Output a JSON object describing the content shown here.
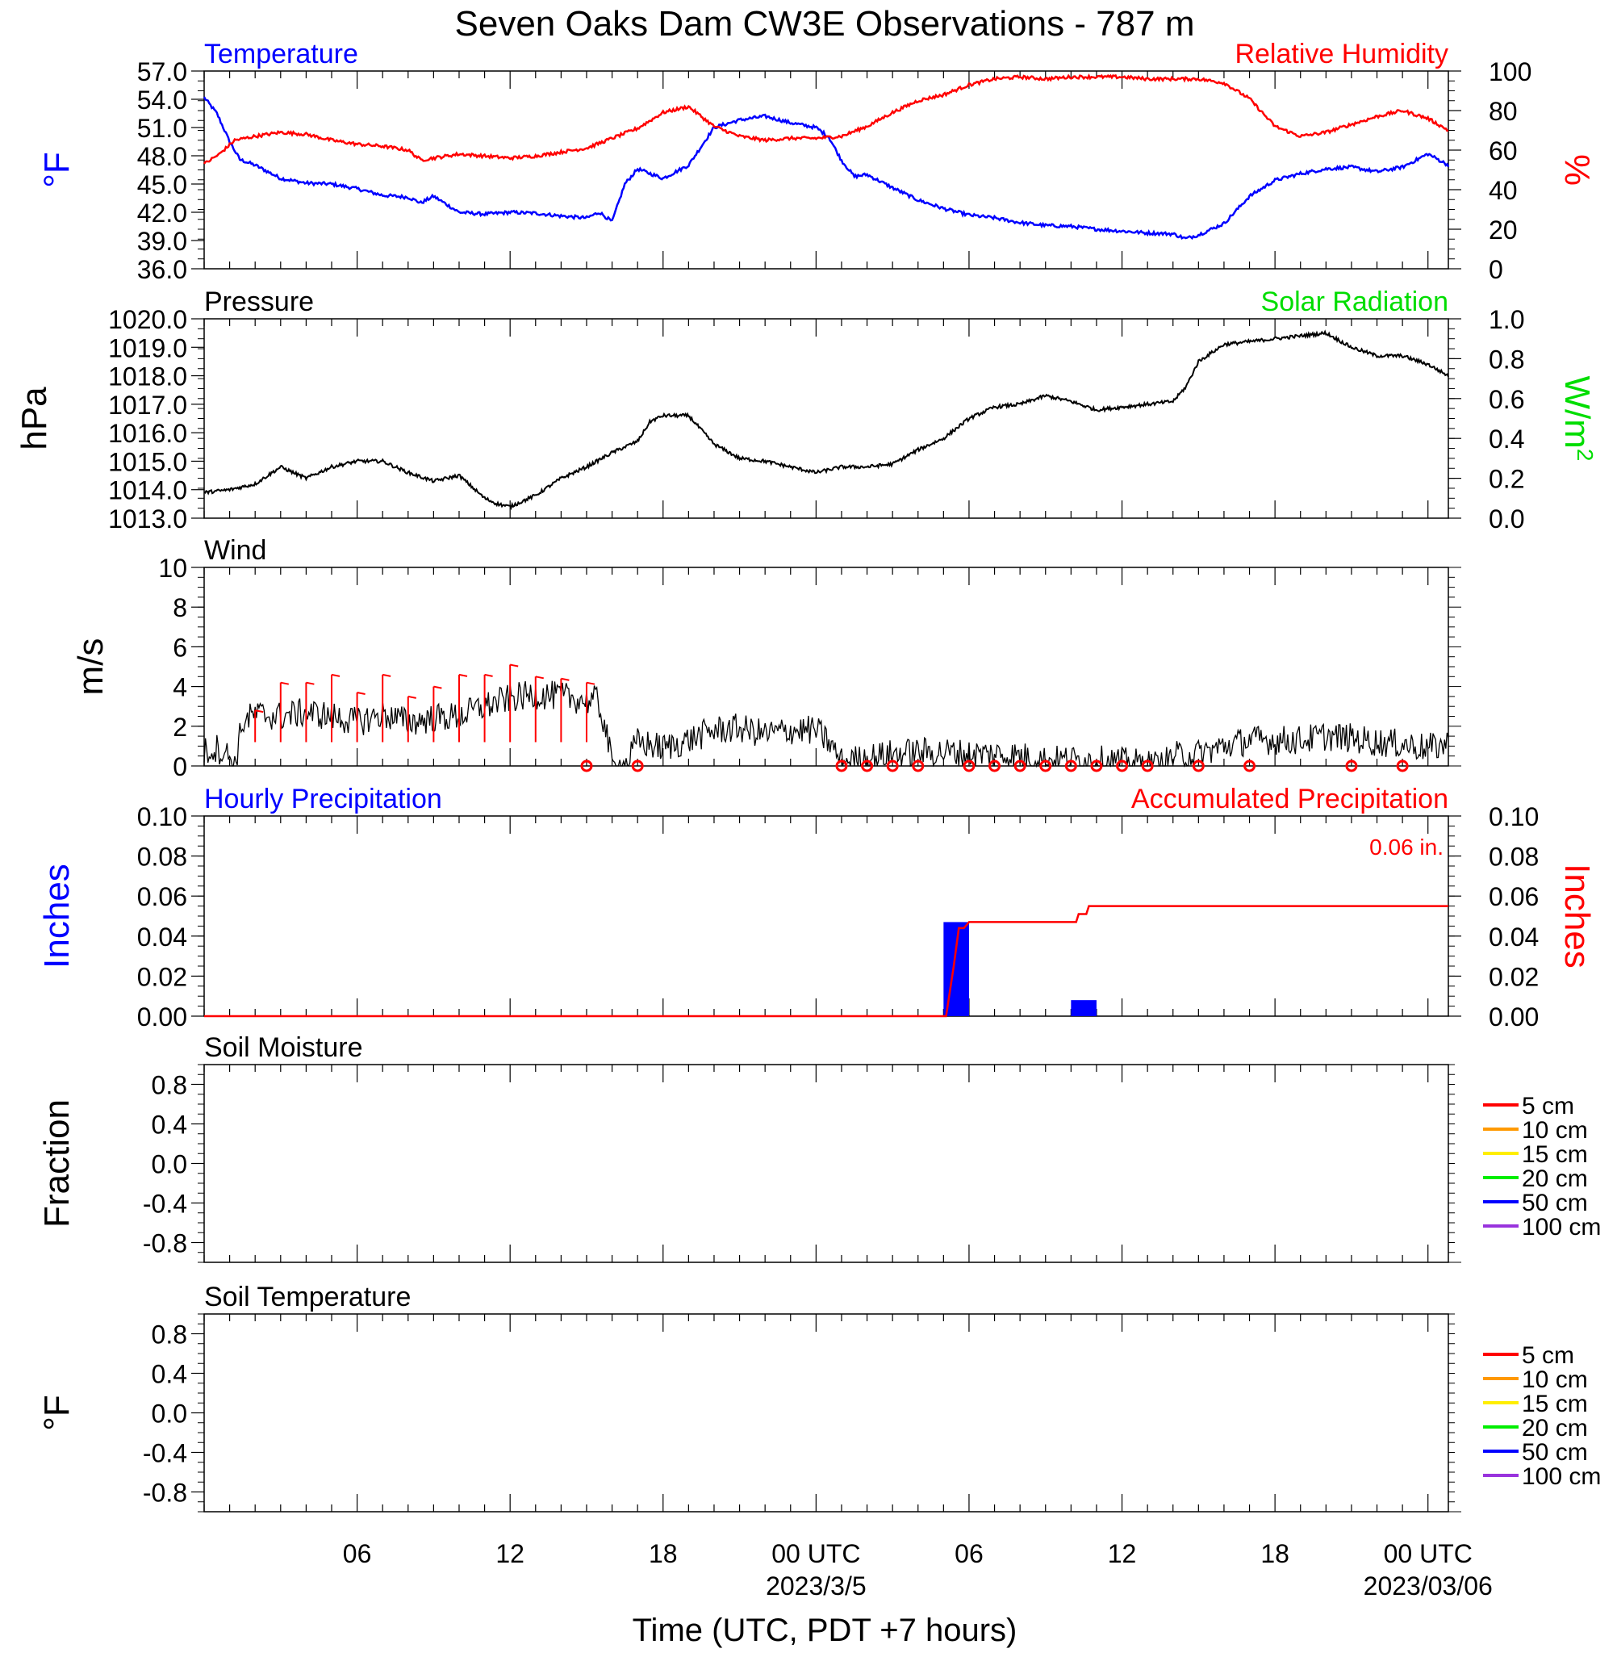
{
  "title": "Seven Oaks Dam CW3E Observations - 787 m",
  "xlabel": "Time (UTC, PDT +7 hours)",
  "x_ticks": [
    {
      "hour": 6,
      "label": "06",
      "sub": ""
    },
    {
      "hour": 12,
      "label": "12",
      "sub": ""
    },
    {
      "hour": 18,
      "label": "18",
      "sub": ""
    },
    {
      "hour": 24,
      "label": "00 UTC",
      "sub": "2023/3/5"
    },
    {
      "hour": 30,
      "label": "06",
      "sub": ""
    },
    {
      "hour": 36,
      "label": "12",
      "sub": ""
    },
    {
      "hour": 42,
      "label": "18",
      "sub": ""
    },
    {
      "hour": 48,
      "label": "00 UTC",
      "sub": "2023/03/06"
    }
  ],
  "colors": {
    "temperature": "#0000ff",
    "humidity": "#ff0000",
    "pressure": "#000000",
    "solar": "#00dd00",
    "wind": "#000000",
    "wind_barb": "#ff0000",
    "hourly_precip": "#0000ff",
    "accum_precip": "#ff0000"
  },
  "chart_data": [
    {
      "id": "temp_rh",
      "type": "line",
      "left_title": "Temperature",
      "right_title": "Relative Humidity",
      "ylabel_left": "°F",
      "ylabel_right": "%",
      "x_range_hours": [
        0,
        48.8
      ],
      "ylim_left": [
        36,
        57
      ],
      "ylim_right": [
        0,
        100
      ],
      "yticks_left": [
        "57.0",
        "54.0",
        "51.0",
        "48.0",
        "45.0",
        "42.0",
        "39.0",
        "36.0"
      ],
      "yticks_right": [
        "100",
        "80",
        "60",
        "40",
        "20",
        "0"
      ],
      "series": [
        {
          "name": "Temperature",
          "axis": "left",
          "x": [
            0,
            0.5,
            1,
            1.4,
            2,
            3,
            4,
            5,
            6,
            7,
            8,
            8.5,
            9,
            10,
            11,
            12,
            13,
            14,
            15,
            15.5,
            16,
            16.5,
            17,
            18,
            19,
            20,
            21,
            22,
            23,
            24,
            24.5,
            25,
            25.5,
            26,
            27,
            28,
            29,
            30,
            31,
            32,
            33,
            34,
            35,
            36,
            37,
            38,
            38.5,
            39,
            40,
            41,
            42,
            43,
            44,
            45,
            46,
            47,
            48,
            48.8
          ],
          "y": [
            54.2,
            52.5,
            49.5,
            47.6,
            47.0,
            45.6,
            45.1,
            45.0,
            44.5,
            43.8,
            43.6,
            43.0,
            43.7,
            42.0,
            41.8,
            42.0,
            41.9,
            41.6,
            41.4,
            42.0,
            41.0,
            45.0,
            46.6,
            45.6,
            47.0,
            51.0,
            51.8,
            52.2,
            51.5,
            51.0,
            50.0,
            47.5,
            45.8,
            46.0,
            44.6,
            43.3,
            42.4,
            41.7,
            41.4,
            40.9,
            40.6,
            40.5,
            40.2,
            40.0,
            39.8,
            39.7,
            39.2,
            39.6,
            40.8,
            43.7,
            45.4,
            46.1,
            46.6,
            46.8,
            46.3,
            46.8,
            48.2,
            47.0
          ]
        },
        {
          "name": "Relative Humidity",
          "axis": "right",
          "x": [
            0,
            0.6,
            1.2,
            2,
            3,
            4,
            5,
            6,
            7,
            8,
            8.5,
            9,
            10,
            11,
            12,
            13,
            14,
            15,
            16,
            17,
            18,
            19,
            20,
            21,
            22,
            23,
            24,
            25,
            26,
            27,
            28,
            29,
            30,
            31,
            32,
            33,
            34,
            35,
            36,
            37,
            38,
            39,
            40,
            41,
            42,
            43,
            44,
            45,
            46,
            47,
            48,
            48.8
          ],
          "y": [
            53,
            58,
            65,
            67,
            69,
            68,
            65,
            63,
            62,
            60,
            55,
            56,
            58,
            57,
            56,
            57,
            59,
            61,
            66,
            71,
            79,
            82,
            72,
            67,
            65,
            66,
            66,
            67,
            72,
            79,
            85,
            88,
            93,
            96,
            97,
            96,
            97,
            97,
            97,
            96,
            96,
            96,
            94,
            86,
            72,
            67,
            69,
            73,
            77,
            80,
            76,
            70
          ]
        }
      ]
    },
    {
      "id": "pressure",
      "type": "line",
      "left_title": "Pressure",
      "right_title": "Solar Radiation",
      "ylabel_left": "hPa",
      "ylabel_right": "W/m",
      "ylabel_right_sup": "2",
      "ylim_left": [
        1013,
        1020
      ],
      "ylim_right": [
        0,
        1
      ],
      "yticks_left": [
        "1020.0",
        "1019.0",
        "1018.0",
        "1017.0",
        "1016.0",
        "1015.0",
        "1014.0",
        "1013.0"
      ],
      "yticks_right": [
        "1.0",
        "0.8",
        "0.6",
        "0.4",
        "0.2",
        "0.0"
      ],
      "series": [
        {
          "name": "Pressure",
          "axis": "left",
          "x": [
            0,
            1,
            2,
            3,
            4,
            5,
            6,
            7,
            8,
            9,
            10,
            11,
            11.5,
            12,
            13,
            14,
            15,
            16,
            17,
            17.5,
            18,
            19,
            20,
            21,
            22,
            23,
            24,
            25,
            26,
            27,
            28,
            29,
            30,
            31,
            32,
            33,
            34,
            35,
            36,
            37,
            38,
            38.5,
            39,
            40,
            41,
            42,
            43,
            44,
            45,
            46,
            47,
            48,
            48.8
          ],
          "y": [
            1013.9,
            1014.0,
            1014.2,
            1014.8,
            1014.4,
            1014.8,
            1015.0,
            1015.0,
            1014.6,
            1014.3,
            1014.5,
            1013.7,
            1013.5,
            1013.4,
            1013.8,
            1014.4,
            1014.8,
            1015.3,
            1015.7,
            1016.4,
            1016.6,
            1016.6,
            1015.6,
            1015.1,
            1015.0,
            1014.8,
            1014.6,
            1014.8,
            1014.8,
            1014.9,
            1015.4,
            1015.8,
            1016.5,
            1016.9,
            1017.0,
            1017.3,
            1017.1,
            1016.8,
            1016.9,
            1017.0,
            1017.1,
            1017.6,
            1018.5,
            1019.1,
            1019.2,
            1019.3,
            1019.4,
            1019.5,
            1019.0,
            1018.7,
            1018.7,
            1018.4,
            1018.0
          ]
        }
      ]
    },
    {
      "id": "wind",
      "type": "line",
      "left_title": "Wind",
      "ylabel_left": "m/s",
      "ylim_left": [
        0,
        10
      ],
      "yticks_left": [
        "10",
        "8",
        "6",
        "4",
        "2",
        "0"
      ],
      "series": [
        {
          "name": "Wind speed",
          "axis": "left",
          "x": [
            0,
            0.5,
            1,
            1.2,
            1.5,
            2,
            3,
            4,
            5,
            6,
            7,
            8,
            9,
            10,
            11,
            12,
            13,
            14,
            14.5,
            15,
            15.4,
            15.7,
            16,
            16.5,
            17,
            18,
            19,
            20,
            21,
            22,
            23,
            24,
            24.5,
            25,
            26,
            27,
            28,
            29,
            30,
            31,
            32,
            33,
            34,
            35,
            36,
            37,
            37.5,
            38,
            39,
            40,
            41,
            42,
            43,
            44,
            45,
            46,
            47,
            48,
            48.8
          ],
          "y": [
            0.7,
            0.9,
            0.5,
            0.0,
            2.2,
            2.6,
            2.5,
            2.7,
            2.5,
            2.2,
            2.6,
            2.2,
            2.4,
            2.5,
            3.0,
            3.4,
            3.6,
            3.5,
            3.4,
            3.3,
            3.3,
            2.2,
            0.0,
            0.0,
            1.2,
            0.9,
            1.3,
            1.8,
            1.9,
            1.6,
            1.8,
            1.8,
            1.2,
            0.2,
            0.4,
            0.6,
            0.7,
            0.7,
            0.6,
            0.6,
            0.5,
            0.3,
            0.3,
            0.3,
            0.2,
            0.1,
            0.0,
            0.5,
            0.6,
            1.0,
            1.3,
            1.3,
            1.3,
            1.5,
            1.4,
            1.2,
            1.1,
            0.9,
            1.1
          ]
        }
      ],
      "barbs": {
        "x": [
          2,
          3,
          4,
          5,
          6,
          7,
          8,
          9,
          10,
          11,
          12,
          13,
          14,
          15
        ],
        "speed": [
          2.8,
          4.2,
          4.2,
          4.6,
          3.7,
          4.6,
          3.5,
          4.0,
          4.6,
          4.6,
          5.1,
          4.5,
          4.4,
          4.2
        ]
      },
      "calm_markers_x": [
        15,
        17,
        25,
        26,
        27,
        28,
        30,
        31,
        32,
        33,
        34,
        35,
        36,
        37,
        39,
        41,
        45,
        47
      ]
    },
    {
      "id": "precip",
      "type": "bar",
      "left_title": "Hourly Precipitation",
      "right_title": "Accumulated Precipitation",
      "total_label": "0.06 in.",
      "ylabel_left": "Inches",
      "ylabel_right": "Inches",
      "ylim_left": [
        0,
        0.1
      ],
      "ylim_right": [
        0,
        0.1
      ],
      "yticks_left": [
        "0.10",
        "0.08",
        "0.06",
        "0.04",
        "0.02",
        "0.00"
      ],
      "yticks_right": [
        "0.10",
        "0.08",
        "0.06",
        "0.04",
        "0.02",
        "0.00"
      ],
      "hourly": [
        {
          "start_hour": 29,
          "end_hour": 30,
          "value": 0.047
        },
        {
          "start_hour": 34,
          "end_hour": 35,
          "value": 0.008
        }
      ],
      "accumulated": {
        "x": [
          0,
          29.1,
          29.4,
          29.6,
          29.8,
          30,
          34.2,
          34.3,
          34.6,
          34.7,
          48.8
        ],
        "y": [
          0,
          0,
          0.025,
          0.044,
          0.044,
          0.047,
          0.047,
          0.051,
          0.051,
          0.055,
          0.055
        ]
      }
    },
    {
      "id": "soil_moisture",
      "type": "line",
      "left_title": "Soil Moisture",
      "ylabel_left": "Fraction",
      "ylim_left": [
        -1,
        1
      ],
      "yticks_left": [
        "0.8",
        "0.4",
        "0.0",
        "-0.4",
        "-0.8"
      ],
      "legend": [
        {
          "label": "5 cm",
          "color": "#ff0000"
        },
        {
          "label": "10 cm",
          "color": "#ff9900"
        },
        {
          "label": "15 cm",
          "color": "#ffee00"
        },
        {
          "label": "20 cm",
          "color": "#00ee00"
        },
        {
          "label": "50 cm",
          "color": "#0000ff"
        },
        {
          "label": "100 cm",
          "color": "#9933dd"
        }
      ]
    },
    {
      "id": "soil_temp",
      "type": "line",
      "left_title": "Soil Temperature",
      "ylabel_left": "°F",
      "ylim_left": [
        -1,
        1
      ],
      "yticks_left": [
        "0.8",
        "0.4",
        "0.0",
        "-0.4",
        "-0.8"
      ],
      "legend": [
        {
          "label": "5 cm",
          "color": "#ff0000"
        },
        {
          "label": "10 cm",
          "color": "#ff9900"
        },
        {
          "label": "15 cm",
          "color": "#ffee00"
        },
        {
          "label": "20 cm",
          "color": "#00ee00"
        },
        {
          "label": "50 cm",
          "color": "#0000ff"
        },
        {
          "label": "100 cm",
          "color": "#9933dd"
        }
      ]
    }
  ]
}
